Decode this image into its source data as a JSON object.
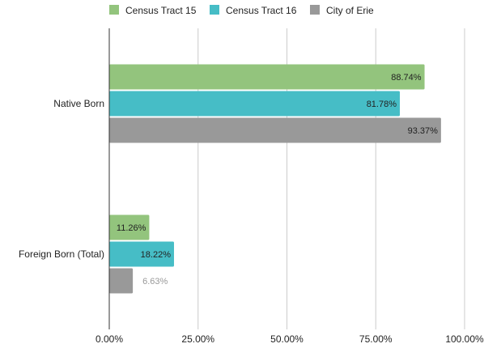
{
  "chart_data": {
    "type": "bar",
    "orientation": "horizontal",
    "categories": [
      "Native Born",
      "Foreign Born (Total)"
    ],
    "series": [
      {
        "name": "Census Tract 15",
        "values": [
          88.74,
          11.26
        ],
        "labels": [
          "88.74%",
          "11.26%"
        ],
        "color": "#93c47d"
      },
      {
        "name": "Census Tract 16",
        "values": [
          81.78,
          18.22
        ],
        "labels": [
          "81.78%",
          "18.22%"
        ],
        "color": "#46bdc6"
      },
      {
        "name": "City of Erie",
        "values": [
          93.37,
          6.63
        ],
        "labels": [
          "93.37%",
          "6.63%"
        ],
        "color": "#999999"
      }
    ],
    "xlim": [
      0,
      100
    ],
    "xticks": [
      0,
      25,
      50,
      75,
      100
    ],
    "xtick_labels": [
      "0.00%",
      "25.00%",
      "50.00%",
      "75.00%",
      "100.00%"
    ],
    "grid": "vertical",
    "legend_position": "top"
  }
}
